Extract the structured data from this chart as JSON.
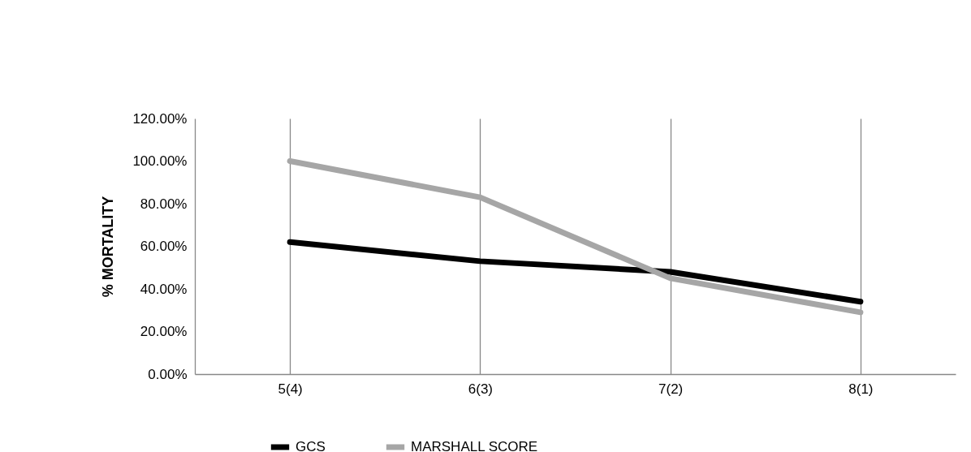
{
  "chart_data": {
    "type": "line",
    "ylabel": "% MORTALITY",
    "categories": [
      "5(4)",
      "6(3)",
      "7(2)",
      "8(1)"
    ],
    "series": [
      {
        "name": "GCS",
        "color": "#000000",
        "values": [
          62,
          53,
          48,
          34
        ]
      },
      {
        "name": "MARSHALL SCORE",
        "color": "#a6a6a6",
        "values": [
          100,
          83,
          45,
          29
        ]
      }
    ],
    "ylim": [
      0,
      120
    ],
    "yticks": [
      {
        "value": 0,
        "label": "0.00%"
      },
      {
        "value": 20,
        "label": "20.00%"
      },
      {
        "value": 40,
        "label": "40.00%"
      },
      {
        "value": 60,
        "label": "60.00%"
      },
      {
        "value": 80,
        "label": "80.00%"
      },
      {
        "value": 100,
        "label": "100.00%"
      },
      {
        "value": 120,
        "label": "120.00%"
      }
    ],
    "grid": "x",
    "legend": "bottom",
    "marker": "none",
    "line_style": "solid"
  }
}
